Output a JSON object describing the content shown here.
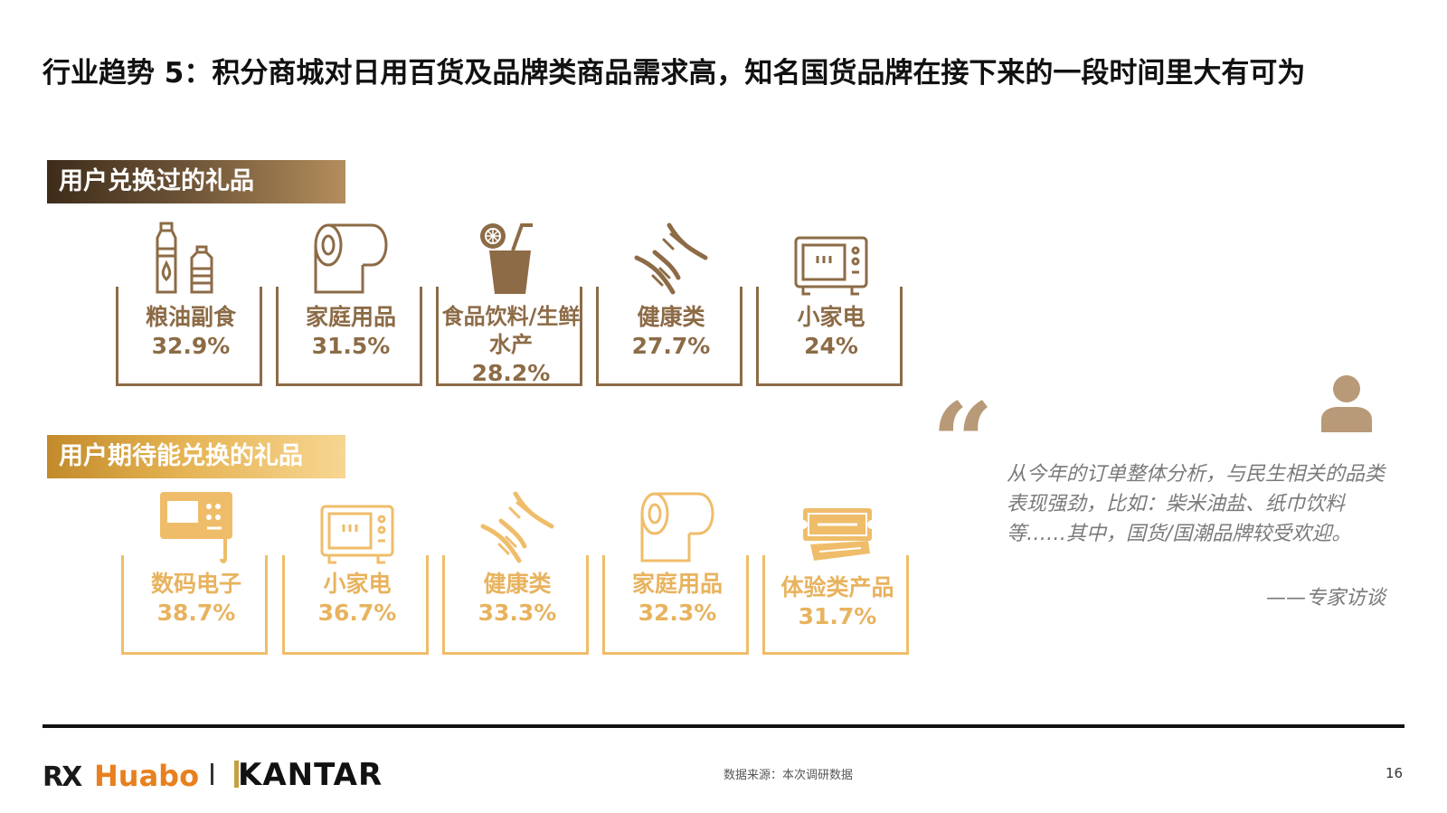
{
  "title": "行业趋势 5：积分商城对日用百货及品牌类商品需求高，知名国货品牌在接下来的一段时间里大有可为",
  "section1": {
    "label": "用户兑换过的礼品",
    "items": [
      {
        "name": "粮油副食",
        "value": "32.9%",
        "icon": "oil-bottles-icon"
      },
      {
        "name": "家庭用品",
        "value": "31.5%",
        "icon": "paper-roll-icon"
      },
      {
        "name": "食品饮料/生鲜水产",
        "value": "28.2%",
        "icon": "drink-cup-icon"
      },
      {
        "name": "健康类",
        "value": "27.7%",
        "icon": "dna-icon"
      },
      {
        "name": "小家电",
        "value": "24%",
        "icon": "microwave-icon"
      }
    ]
  },
  "section2": {
    "label": "用户期待能兑换的礼品",
    "items": [
      {
        "name": "数码电子",
        "value": "38.7%",
        "icon": "digital-device-icon"
      },
      {
        "name": "小家电",
        "value": "36.7%",
        "icon": "microwave-icon"
      },
      {
        "name": "健康类",
        "value": "33.3%",
        "icon": "dna-icon"
      },
      {
        "name": "家庭用品",
        "value": "32.3%",
        "icon": "paper-roll-icon"
      },
      {
        "name": "体验类产品",
        "value": "31.7%",
        "icon": "ticket-icon"
      }
    ]
  },
  "quote": {
    "text": "从今年的订单整体分析，与民生相关的品类表现强劲，比如：柴米油盐、纸巾饮料等……其中，国货/国潮品牌较受欢迎。",
    "source": "——专家访谈"
  },
  "footer": {
    "logo_rx": "RX",
    "logo_huabo": "Huabo",
    "logo_kantar": "KANTAR",
    "source": "数据来源：本次调研数据",
    "page": "16"
  },
  "colors": {
    "dark_gold": "#8c6b46",
    "light_gold": "#efbd6a",
    "huabo_orange": "#e8801e"
  }
}
